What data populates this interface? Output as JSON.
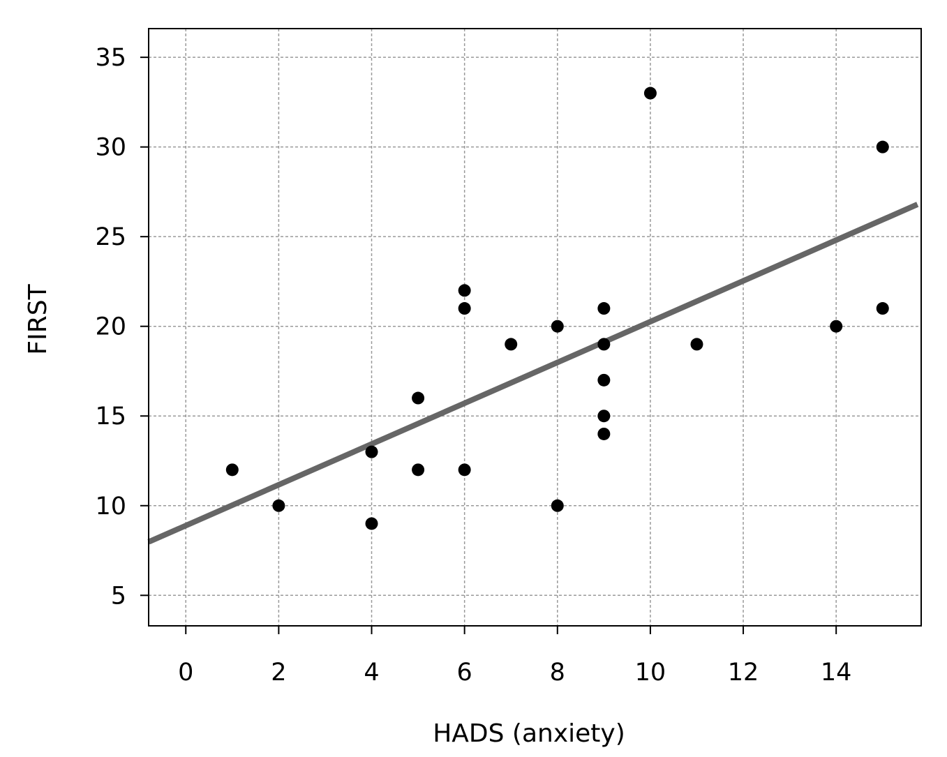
{
  "chart_data": {
    "type": "scatter",
    "title": "",
    "xlabel": "HADS (anxiety)",
    "ylabel": "FIRST",
    "xlim": [
      -0.8,
      15.83
    ],
    "ylim": [
      3.3,
      36.6
    ],
    "xticks": [
      0,
      2,
      4,
      6,
      8,
      10,
      12,
      14
    ],
    "yticks": [
      5,
      10,
      15,
      20,
      25,
      30,
      35
    ],
    "grid": true,
    "points": [
      [
        1,
        12
      ],
      [
        2,
        10
      ],
      [
        4,
        13
      ],
      [
        4,
        9
      ],
      [
        5,
        16
      ],
      [
        5,
        12
      ],
      [
        6,
        22
      ],
      [
        6,
        21
      ],
      [
        6,
        12
      ],
      [
        7,
        19
      ],
      [
        8,
        20
      ],
      [
        8,
        10
      ],
      [
        9,
        21
      ],
      [
        9,
        19
      ],
      [
        9,
        17
      ],
      [
        9,
        15
      ],
      [
        9,
        14
      ],
      [
        10,
        33
      ],
      [
        11,
        19
      ],
      [
        14,
        20
      ],
      [
        15,
        30
      ],
      [
        15,
        21
      ]
    ],
    "fit_line": {
      "slope": 1.137,
      "intercept": 8.89,
      "color": "#666666"
    },
    "point_color": "#000000"
  }
}
